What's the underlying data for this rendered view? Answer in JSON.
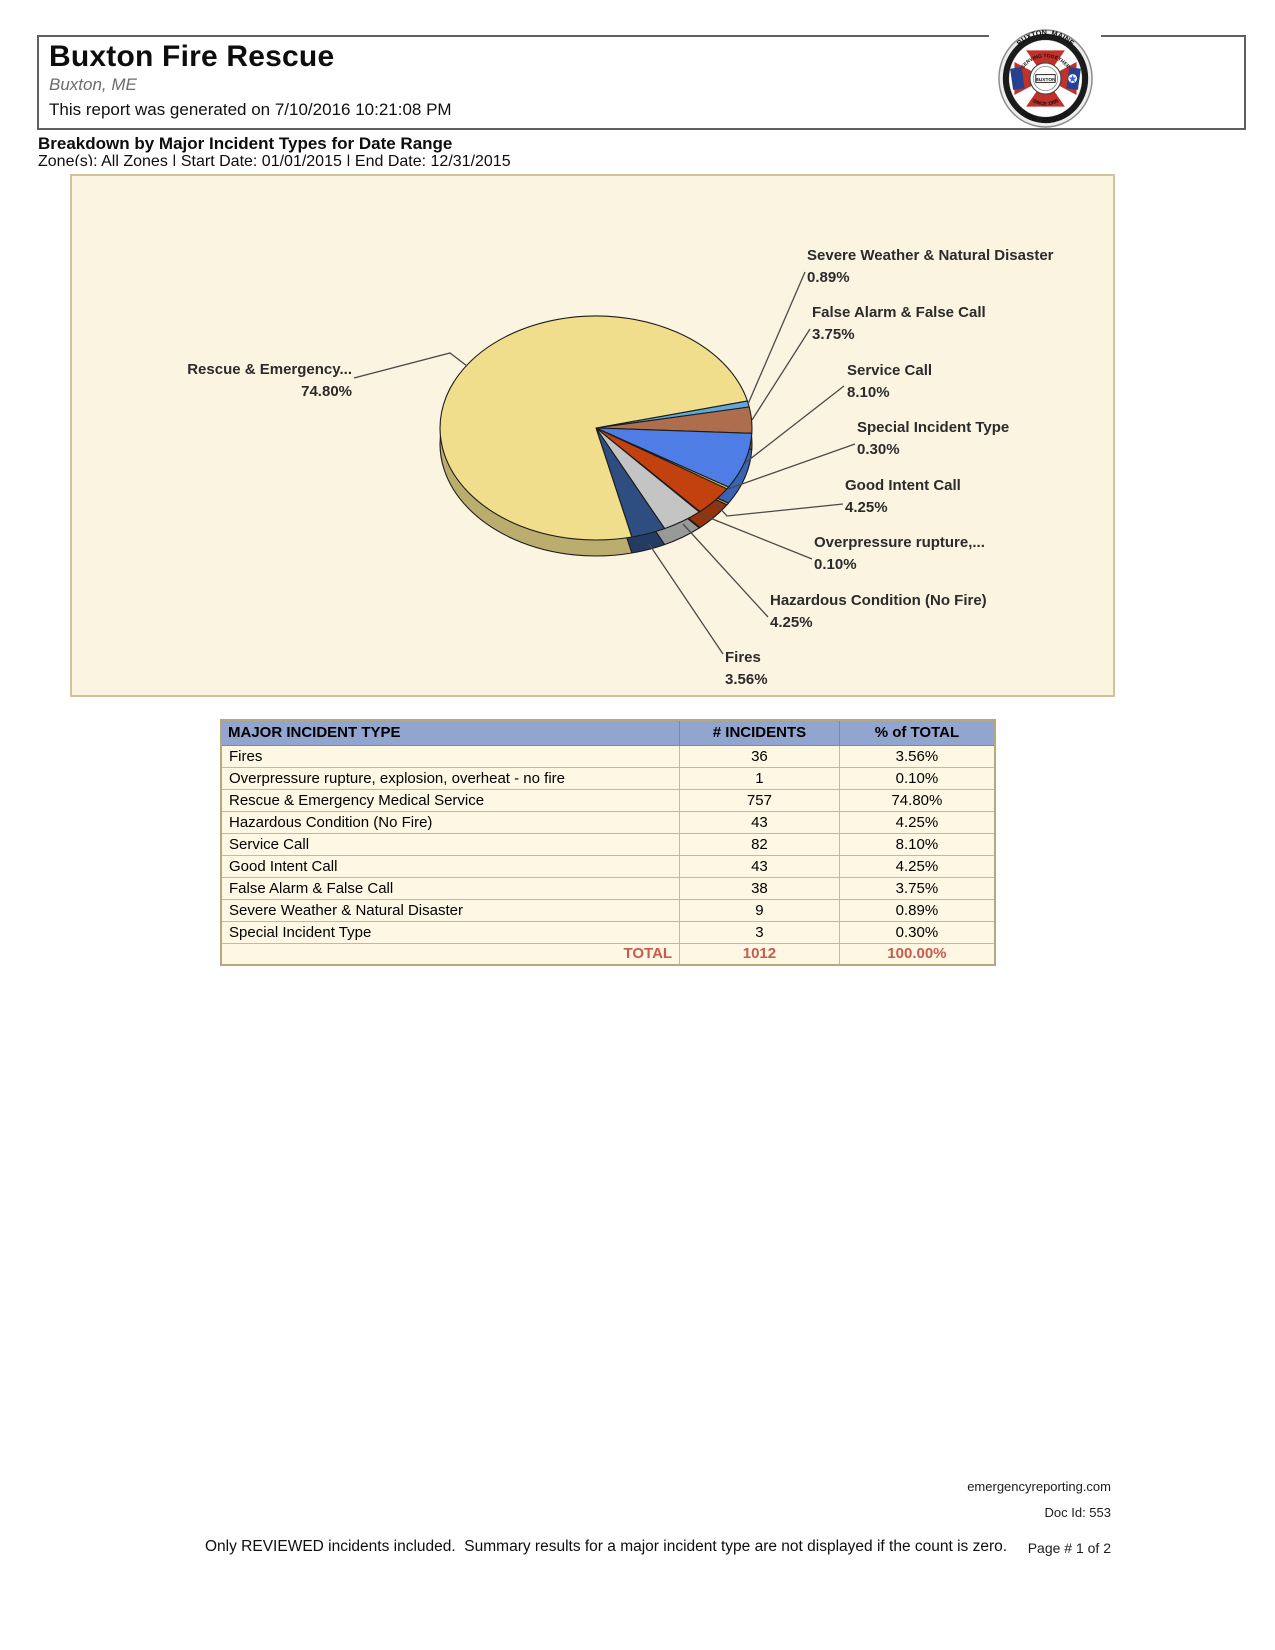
{
  "header": {
    "title": "Buxton Fire Rescue",
    "location": "Buxton, ME",
    "generated": "This report was generated on 7/10/2016 10:21:08 PM",
    "logo": {
      "arc_top": "BUXTON, MAINE",
      "serving": "SERVING TOGETHER",
      "center": "BUXTON",
      "since": "SINCE 1995",
      "arc_bottom": "FIRE - RESCUE"
    }
  },
  "report": {
    "section_title": "Breakdown by Major Incident Types for Date Range",
    "zone_line": "Zone(s): All Zones | Start Date: 01/01/2015 | End Date: 12/31/2015"
  },
  "chart_data": {
    "type": "pie",
    "style": "3d",
    "title": "",
    "legend_position": "callout-labels",
    "start_angle_deg": -14,
    "slices": [
      {
        "label": "Severe Weather & Natural Disaster",
        "pct_label": "0.89%",
        "value": 0.89,
        "color": "#5FA8DC"
      },
      {
        "label": "False Alarm & False Call",
        "pct_label": "3.75%",
        "value": 3.75,
        "color": "#AE6E4E"
      },
      {
        "label": "Service Call",
        "pct_label": "8.10%",
        "value": 8.1,
        "color": "#4D7DE5"
      },
      {
        "label": "Special Incident Type",
        "pct_label": "0.30%",
        "value": 0.3,
        "color": "#E8D44C"
      },
      {
        "label": "Good Intent Call",
        "pct_label": "4.25%",
        "value": 4.25,
        "color": "#C2410E"
      },
      {
        "label": "Overpressure  rupture,...",
        "pct_label": "0.10%",
        "value": 0.1,
        "color": "#EFE9D8"
      },
      {
        "label": "Hazardous Condition (No Fire)",
        "pct_label": "4.25%",
        "value": 4.25,
        "color": "#C4C4C4"
      },
      {
        "label": "Fires",
        "pct_label": "3.56%",
        "value": 3.56,
        "color": "#2E4D80"
      },
      {
        "label": "Rescue & Emergency...",
        "pct_label": "74.80%",
        "value": 74.8,
        "color": "#F0DE8C"
      }
    ]
  },
  "table": {
    "headers": [
      "MAJOR INCIDENT TYPE",
      "# INCIDENTS",
      "% of TOTAL"
    ],
    "rows": [
      [
        "Fires",
        "36",
        "3.56%"
      ],
      [
        "Overpressure rupture, explosion, overheat - no fire",
        "1",
        "0.10%"
      ],
      [
        "Rescue & Emergency Medical Service",
        "757",
        "74.80%"
      ],
      [
        "Hazardous Condition (No Fire)",
        "43",
        "4.25%"
      ],
      [
        "Service Call",
        "82",
        "8.10%"
      ],
      [
        "Good Intent Call",
        "43",
        "4.25%"
      ],
      [
        "False Alarm & False Call",
        "38",
        "3.75%"
      ],
      [
        "Severe Weather & Natural Disaster",
        "9",
        "0.89%"
      ],
      [
        "Special Incident Type",
        "3",
        "0.30%"
      ]
    ],
    "total": {
      "label": "TOTAL",
      "incidents": "1012",
      "pct": "100.00%"
    }
  },
  "footer": {
    "site": "emergencyreporting.com",
    "doc_id": "Doc Id: 553",
    "page": "Page # 1 of 2",
    "note": "Only REVIEWED incidents included.  Summary results for a major incident type are not displayed if the count is zero."
  },
  "colors": {
    "chart_bg": "#FBF4E1",
    "chart_border": "#CFC39D",
    "table_header_bg": "#91A5CE",
    "table_row_bg": "#FDF7E3",
    "table_border": "#C7BA92",
    "total_text": "#C75B4E",
    "leader_line": "#4a4a4a"
  }
}
